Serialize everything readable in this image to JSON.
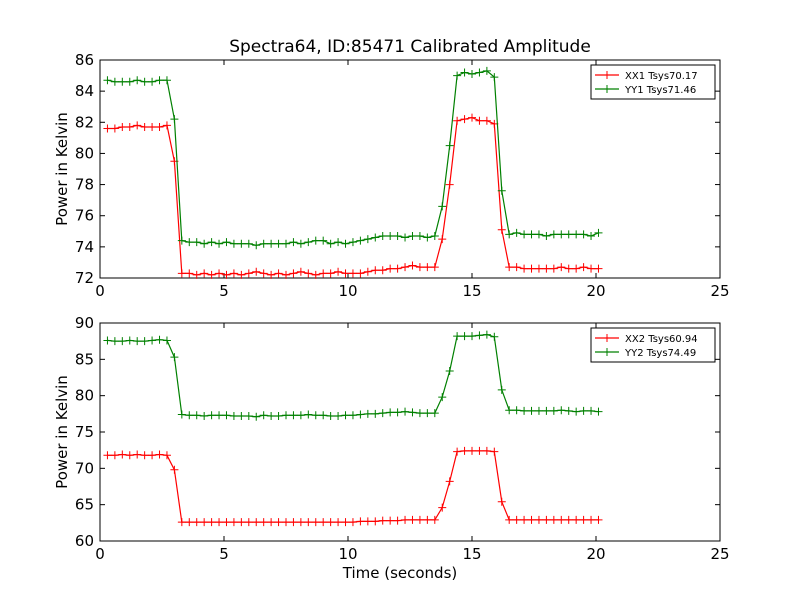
{
  "figure": {
    "title": "Spectra64, ID:85471 Calibrated Amplitude"
  },
  "chart_data": [
    {
      "type": "line",
      "title": "Spectra64, ID:85471 Calibrated Amplitude",
      "xlabel": "",
      "ylabel": "Power in Kelvin",
      "xlim": [
        0,
        25
      ],
      "ylim": [
        72,
        86
      ],
      "xticks": [
        0,
        5,
        10,
        15,
        20,
        25
      ],
      "yticks": [
        72,
        74,
        76,
        78,
        80,
        82,
        84,
        86
      ],
      "grid": false,
      "legend": "top-right",
      "x": [
        0.3,
        0.6,
        0.9,
        1.2,
        1.5,
        1.8,
        2.1,
        2.4,
        2.7,
        3.0,
        3.3,
        3.6,
        3.9,
        4.2,
        4.5,
        4.8,
        5.1,
        5.4,
        5.7,
        6.0,
        6.3,
        6.6,
        6.9,
        7.2,
        7.5,
        7.8,
        8.1,
        8.4,
        8.7,
        9.0,
        9.3,
        9.6,
        9.9,
        10.2,
        10.5,
        10.8,
        11.1,
        11.4,
        11.7,
        12.0,
        12.3,
        12.6,
        12.9,
        13.2,
        13.5,
        13.8,
        14.1,
        14.4,
        14.7,
        15.0,
        15.3,
        15.6,
        15.9,
        16.2,
        16.5,
        16.8,
        17.1,
        17.4,
        17.7,
        18.0,
        18.3,
        18.6,
        18.9,
        19.2,
        19.5,
        19.8,
        20.1
      ],
      "series": [
        {
          "name": "XX1 Tsys70.17",
          "color": "#ff0000",
          "values": [
            81.6,
            81.6,
            81.7,
            81.7,
            81.8,
            81.7,
            81.7,
            81.7,
            81.8,
            79.5,
            72.3,
            72.3,
            72.2,
            72.3,
            72.2,
            72.3,
            72.2,
            72.3,
            72.2,
            72.3,
            72.4,
            72.3,
            72.2,
            72.3,
            72.2,
            72.3,
            72.4,
            72.3,
            72.2,
            72.3,
            72.3,
            72.4,
            72.3,
            72.3,
            72.3,
            72.4,
            72.5,
            72.5,
            72.6,
            72.6,
            72.7,
            72.8,
            72.7,
            72.7,
            72.7,
            74.5,
            78.0,
            82.1,
            82.2,
            82.3,
            82.1,
            82.1,
            81.9,
            75.1,
            72.7,
            72.7,
            72.6,
            72.6,
            72.6,
            72.6,
            72.6,
            72.7,
            72.6,
            72.6,
            72.7,
            72.6,
            72.6
          ]
        },
        {
          "name": "YY1 Tsys71.46",
          "color": "#008000",
          "values": [
            84.7,
            84.6,
            84.6,
            84.6,
            84.7,
            84.6,
            84.6,
            84.7,
            84.7,
            82.2,
            74.4,
            74.3,
            74.3,
            74.2,
            74.3,
            74.2,
            74.3,
            74.2,
            74.2,
            74.2,
            74.1,
            74.2,
            74.2,
            74.2,
            74.2,
            74.3,
            74.2,
            74.3,
            74.4,
            74.4,
            74.2,
            74.3,
            74.2,
            74.3,
            74.4,
            74.5,
            74.6,
            74.7,
            74.7,
            74.7,
            74.6,
            74.7,
            74.7,
            74.6,
            74.7,
            76.6,
            80.5,
            85.0,
            85.2,
            85.1,
            85.2,
            85.3,
            84.9,
            77.6,
            74.8,
            74.9,
            74.8,
            74.8,
            74.8,
            74.7,
            74.8,
            74.8,
            74.8,
            74.8,
            74.8,
            74.7,
            74.9
          ]
        }
      ]
    },
    {
      "type": "line",
      "title": "",
      "xlabel": "Time (seconds)",
      "ylabel": "Power in Kelvin",
      "xlim": [
        0,
        25
      ],
      "ylim": [
        60,
        90
      ],
      "xticks": [
        0,
        5,
        10,
        15,
        20,
        25
      ],
      "yticks": [
        60,
        65,
        70,
        75,
        80,
        85,
        90
      ],
      "grid": false,
      "legend": "top-right",
      "x": [
        0.3,
        0.6,
        0.9,
        1.2,
        1.5,
        1.8,
        2.1,
        2.4,
        2.7,
        3.0,
        3.3,
        3.6,
        3.9,
        4.2,
        4.5,
        4.8,
        5.1,
        5.4,
        5.7,
        6.0,
        6.3,
        6.6,
        6.9,
        7.2,
        7.5,
        7.8,
        8.1,
        8.4,
        8.7,
        9.0,
        9.3,
        9.6,
        9.9,
        10.2,
        10.5,
        10.8,
        11.1,
        11.4,
        11.7,
        12.0,
        12.3,
        12.6,
        12.9,
        13.2,
        13.5,
        13.8,
        14.1,
        14.4,
        14.7,
        15.0,
        15.3,
        15.6,
        15.9,
        16.2,
        16.5,
        16.8,
        17.1,
        17.4,
        17.7,
        18.0,
        18.3,
        18.6,
        18.9,
        19.2,
        19.5,
        19.8,
        20.1
      ],
      "series": [
        {
          "name": "XX2 Tsys60.94",
          "color": "#ff0000",
          "values": [
            71.8,
            71.8,
            71.9,
            71.8,
            71.9,
            71.8,
            71.8,
            71.9,
            71.8,
            69.8,
            62.6,
            62.6,
            62.6,
            62.6,
            62.6,
            62.6,
            62.6,
            62.6,
            62.6,
            62.6,
            62.6,
            62.6,
            62.6,
            62.6,
            62.6,
            62.6,
            62.6,
            62.6,
            62.6,
            62.6,
            62.6,
            62.6,
            62.6,
            62.6,
            62.7,
            62.7,
            62.7,
            62.8,
            62.8,
            62.8,
            62.9,
            62.9,
            62.9,
            62.9,
            62.9,
            64.6,
            68.2,
            72.3,
            72.4,
            72.4,
            72.4,
            72.4,
            72.3,
            65.4,
            62.9,
            62.9,
            62.9,
            62.9,
            62.9,
            62.9,
            62.9,
            62.9,
            62.9,
            62.9,
            62.9,
            62.9,
            62.9
          ]
        },
        {
          "name": "YY2 Tsys74.49",
          "color": "#008000",
          "values": [
            87.6,
            87.5,
            87.5,
            87.6,
            87.5,
            87.5,
            87.6,
            87.7,
            87.6,
            85.3,
            77.4,
            77.3,
            77.3,
            77.2,
            77.3,
            77.3,
            77.3,
            77.2,
            77.2,
            77.2,
            77.1,
            77.3,
            77.2,
            77.2,
            77.3,
            77.3,
            77.3,
            77.4,
            77.3,
            77.3,
            77.2,
            77.2,
            77.3,
            77.3,
            77.4,
            77.5,
            77.5,
            77.6,
            77.7,
            77.7,
            77.8,
            77.7,
            77.6,
            77.6,
            77.6,
            79.8,
            83.4,
            88.2,
            88.2,
            88.2,
            88.3,
            88.4,
            88.1,
            80.8,
            78.0,
            78.0,
            77.9,
            77.9,
            77.9,
            77.9,
            77.9,
            78.0,
            77.9,
            77.8,
            77.9,
            77.9,
            77.8
          ]
        }
      ]
    }
  ]
}
